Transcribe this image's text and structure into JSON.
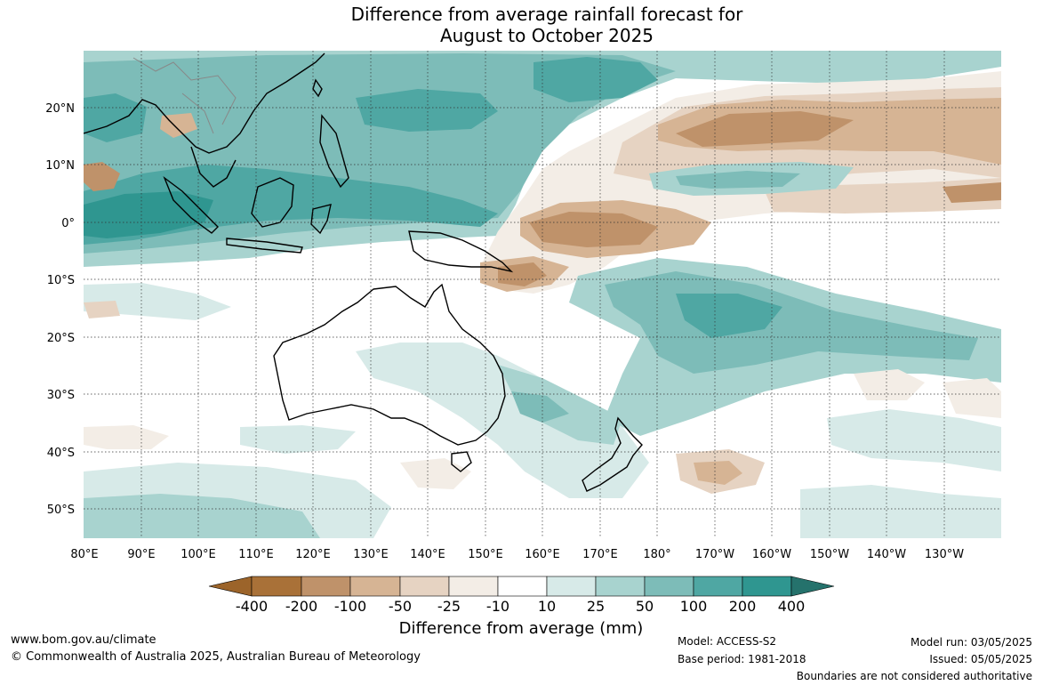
{
  "title": {
    "line1": "Difference from average rainfall forecast for",
    "line2": "August to October 2025"
  },
  "map": {
    "region": "Australia, Maritime Continent and western Pacific",
    "lon_ticks": [
      "80°E",
      "90°E",
      "100°E",
      "110°E",
      "120°E",
      "130°E",
      "140°E",
      "150°E",
      "160°E",
      "170°E",
      "180°",
      "170°W",
      "160°W",
      "150°W",
      "140°W",
      "130°W"
    ],
    "lat_ticks": [
      "20°N",
      "10°N",
      "0°",
      "10°S",
      "20°S",
      "30°S",
      "40°S",
      "50°S"
    ],
    "gridlines": "dotted",
    "colors": {
      "coastline": "#000000",
      "borders": "#888888"
    }
  },
  "legend": {
    "title": "Difference from average (mm)",
    "labels": [
      "-400",
      "-200",
      "-100",
      "-50",
      "-25",
      "-10",
      "10",
      "25",
      "50",
      "100",
      "200",
      "400"
    ],
    "colors": [
      "#9c642a",
      "#a97138",
      "#bf926a",
      "#d6b494",
      "#e6d3c2",
      "#f3ede6",
      "#ffffff",
      "#d7eae8",
      "#a8d3cf",
      "#7dbcb8",
      "#4fa7a3",
      "#2f9690",
      "#25726c"
    ]
  },
  "footer": {
    "website": "www.bom.gov.au/climate",
    "copyright": "© Commonwealth of Australia 2025, Australian Bureau of Meteorology",
    "model": "Model: ACCESS-S2",
    "base_period": "Base period: 1981-2018",
    "model_run": "Model run: 03/05/2025",
    "issued": "Issued: 05/05/2025",
    "disclaimer": "Boundaries are not considered authoritative"
  }
}
